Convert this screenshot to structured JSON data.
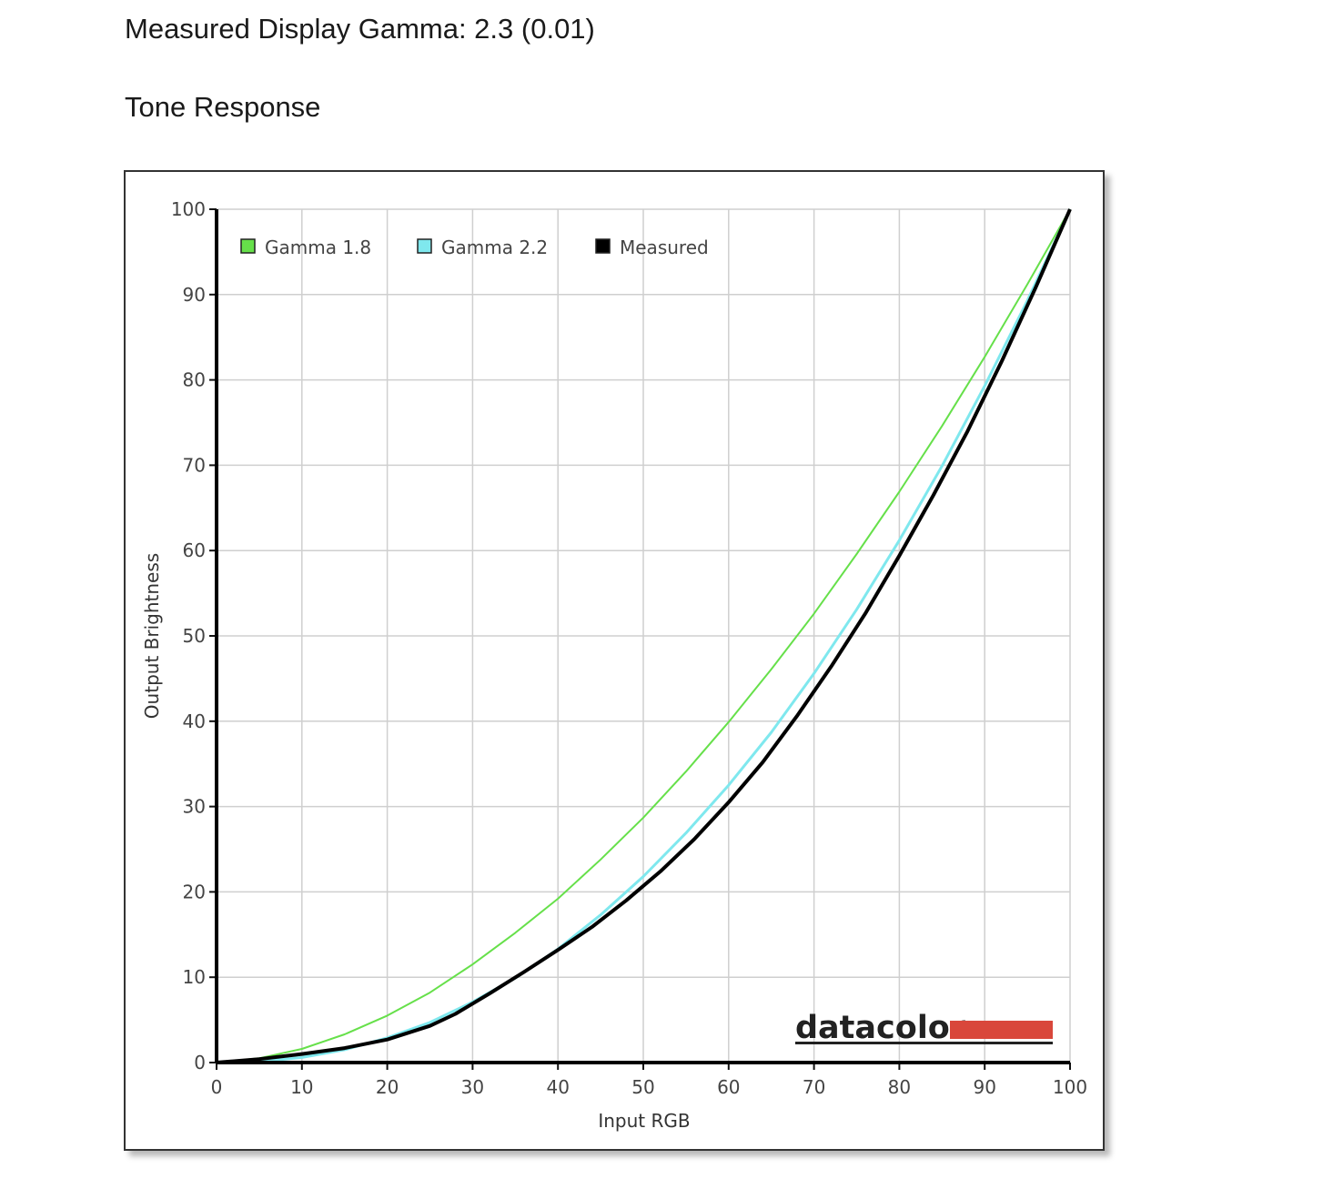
{
  "heading": {
    "measured_gamma": "Measured Display Gamma: 2.3 (0.01)",
    "section_title": "Tone Response"
  },
  "logo": {
    "text": "datacolor",
    "bar_color": "#d9473b"
  },
  "chart_data": {
    "type": "line",
    "title": "",
    "xlabel": "Input RGB",
    "ylabel": "Output Brightness",
    "xlim": [
      0,
      100
    ],
    "ylim": [
      0,
      100
    ],
    "xticks": [
      0,
      10,
      20,
      30,
      40,
      50,
      60,
      70,
      80,
      90,
      100
    ],
    "yticks": [
      0,
      10,
      20,
      30,
      40,
      50,
      60,
      70,
      80,
      90,
      100
    ],
    "grid": true,
    "legend_position": "top-left",
    "series": [
      {
        "name": "Gamma 1.8",
        "color": "#66e04a",
        "x": [
          0,
          5,
          10,
          15,
          20,
          25,
          30,
          35,
          40,
          45,
          50,
          55,
          60,
          65,
          70,
          75,
          80,
          85,
          90,
          95,
          100
        ],
        "y": [
          0,
          0.5,
          1.6,
          3.3,
          5.5,
          8.2,
          11.5,
          15.2,
          19.2,
          23.8,
          28.7,
          34.1,
          39.9,
          46.1,
          52.6,
          59.6,
          66.9,
          74.6,
          82.7,
          91.2,
          100
        ]
      },
      {
        "name": "Gamma 2.2",
        "color": "#7fe8ee",
        "x": [
          0,
          5,
          10,
          15,
          20,
          25,
          30,
          35,
          40,
          45,
          50,
          55,
          60,
          65,
          70,
          75,
          80,
          85,
          90,
          95,
          100
        ],
        "y": [
          0,
          0.1,
          0.6,
          1.5,
          2.9,
          4.7,
          7.1,
          9.9,
          13.3,
          17.3,
          21.8,
          26.9,
          32.5,
          38.7,
          45.6,
          53.1,
          61.2,
          69.9,
          79.3,
          89.3,
          100
        ]
      },
      {
        "name": "Measured",
        "color": "#000000",
        "x": [
          0,
          5,
          10,
          15,
          20,
          25,
          28,
          32,
          36,
          40,
          44,
          48,
          52,
          56,
          60,
          64,
          68,
          72,
          76,
          80,
          84,
          88,
          92,
          96,
          100
        ],
        "y": [
          0,
          0.4,
          1.0,
          1.7,
          2.7,
          4.3,
          5.7,
          8.1,
          10.6,
          13.2,
          15.9,
          19.0,
          22.4,
          26.2,
          30.5,
          35.2,
          40.6,
          46.4,
          52.6,
          59.4,
          66.5,
          74.0,
          82.2,
          90.9,
          100
        ]
      }
    ]
  }
}
